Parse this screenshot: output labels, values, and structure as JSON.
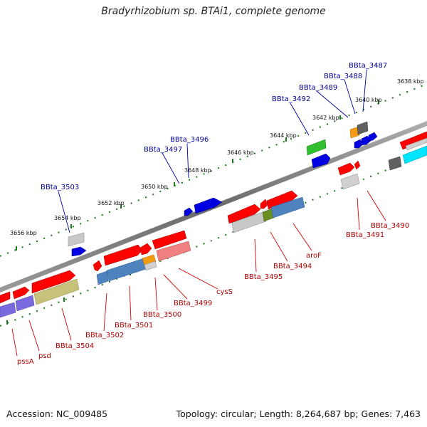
{
  "title": "Bradyrhizobium sp. BTAi1, complete genome",
  "footer": {
    "accession": "Accession: NC_009485",
    "summary": "Topology: circular; Length: 8,264,687 bp; Genes: 7,463"
  },
  "colors": {
    "backbone": "#777777",
    "top_label": "#00009a",
    "bottom_label": "#b00000",
    "tick": "#1a7a1a"
  },
  "scale_labels": [
    "3638 kbp",
    "3640 kbp",
    "3642 kbp",
    "3644 kbp",
    "3646 kbp",
    "3648 kbp",
    "3650 kbp",
    "3652 kbp",
    "3654 kbp",
    "3656 kbp"
  ],
  "top_gene_labels": [
    "BBta_3487",
    "BBta_3488",
    "BBta_3489",
    "BBta_3492",
    "BBta_3496",
    "BBta_3497",
    "BBta_3503"
  ],
  "bottom_gene_labels": [
    "BBta_3490",
    "BBta_3491",
    "aroF",
    "BBta_3494",
    "BBta_3495",
    "cysS",
    "BBta_3499",
    "BBta_3500",
    "BBta_3501",
    "BBta_3502",
    "BBta_3504",
    "psd",
    "pssA"
  ]
}
